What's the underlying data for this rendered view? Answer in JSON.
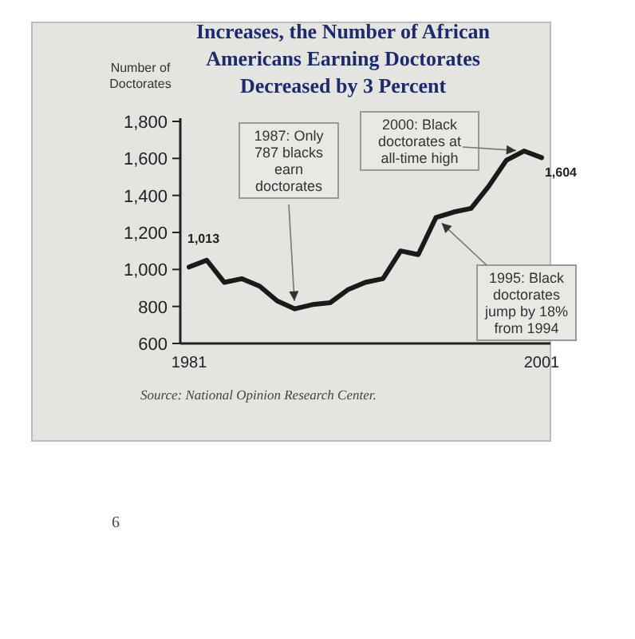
{
  "chart_data": {
    "type": "line",
    "title": "Increases, the Number of African Americans Earning Doctorates Decreased by 3 Percent",
    "ylabel": "Number of Doctorates",
    "x": [
      1981,
      1982,
      1983,
      1984,
      1985,
      1986,
      1987,
      1988,
      1989,
      1990,
      1991,
      1992,
      1993,
      1994,
      1995,
      1996,
      1997,
      1998,
      1999,
      2000,
      2001
    ],
    "series": [
      {
        "color": "#1a1a1a",
        "values": [
          1013,
          1050,
          930,
          950,
          910,
          830,
          787,
          810,
          820,
          890,
          930,
          950,
          1100,
          1080,
          1280,
          1310,
          1330,
          1450,
          1590,
          1640,
          1604
        ],
        "value_labels": [
          "1,013",
          null,
          null,
          null,
          null,
          null,
          null,
          null,
          null,
          null,
          null,
          null,
          null,
          null,
          null,
          null,
          null,
          null,
          null,
          null,
          "1,604"
        ]
      }
    ],
    "xlim": [
      1980.5,
      2001.5
    ],
    "xticks": [
      1981,
      2001
    ],
    "ylim": [
      600,
      1800
    ],
    "yticks": [
      {
        "value": 600,
        "label": "600"
      },
      {
        "value": 800,
        "label": "800"
      },
      {
        "value": 1000,
        "label": "1,000"
      },
      {
        "value": 1200,
        "label": "1,200"
      },
      {
        "value": 1400,
        "label": "1,400"
      },
      {
        "value": 1600,
        "label": "1,600"
      },
      {
        "value": 1800,
        "label": "1,800"
      }
    ],
    "grid": false,
    "marker": "none",
    "line_style": "solid",
    "annotations": [
      {
        "text": "1987: Only 787 blacks earn doctorates",
        "x": 1987,
        "y": 787
      },
      {
        "text": "2000: Black doctorates at all-time high",
        "x": 2000,
        "y": 1640
      },
      {
        "text": "1995: Black doctorates jump by 18% from 1994",
        "x": 1995,
        "y": 1280
      },
      "Source: National Opinion Research Center.",
      "6"
    ]
  }
}
